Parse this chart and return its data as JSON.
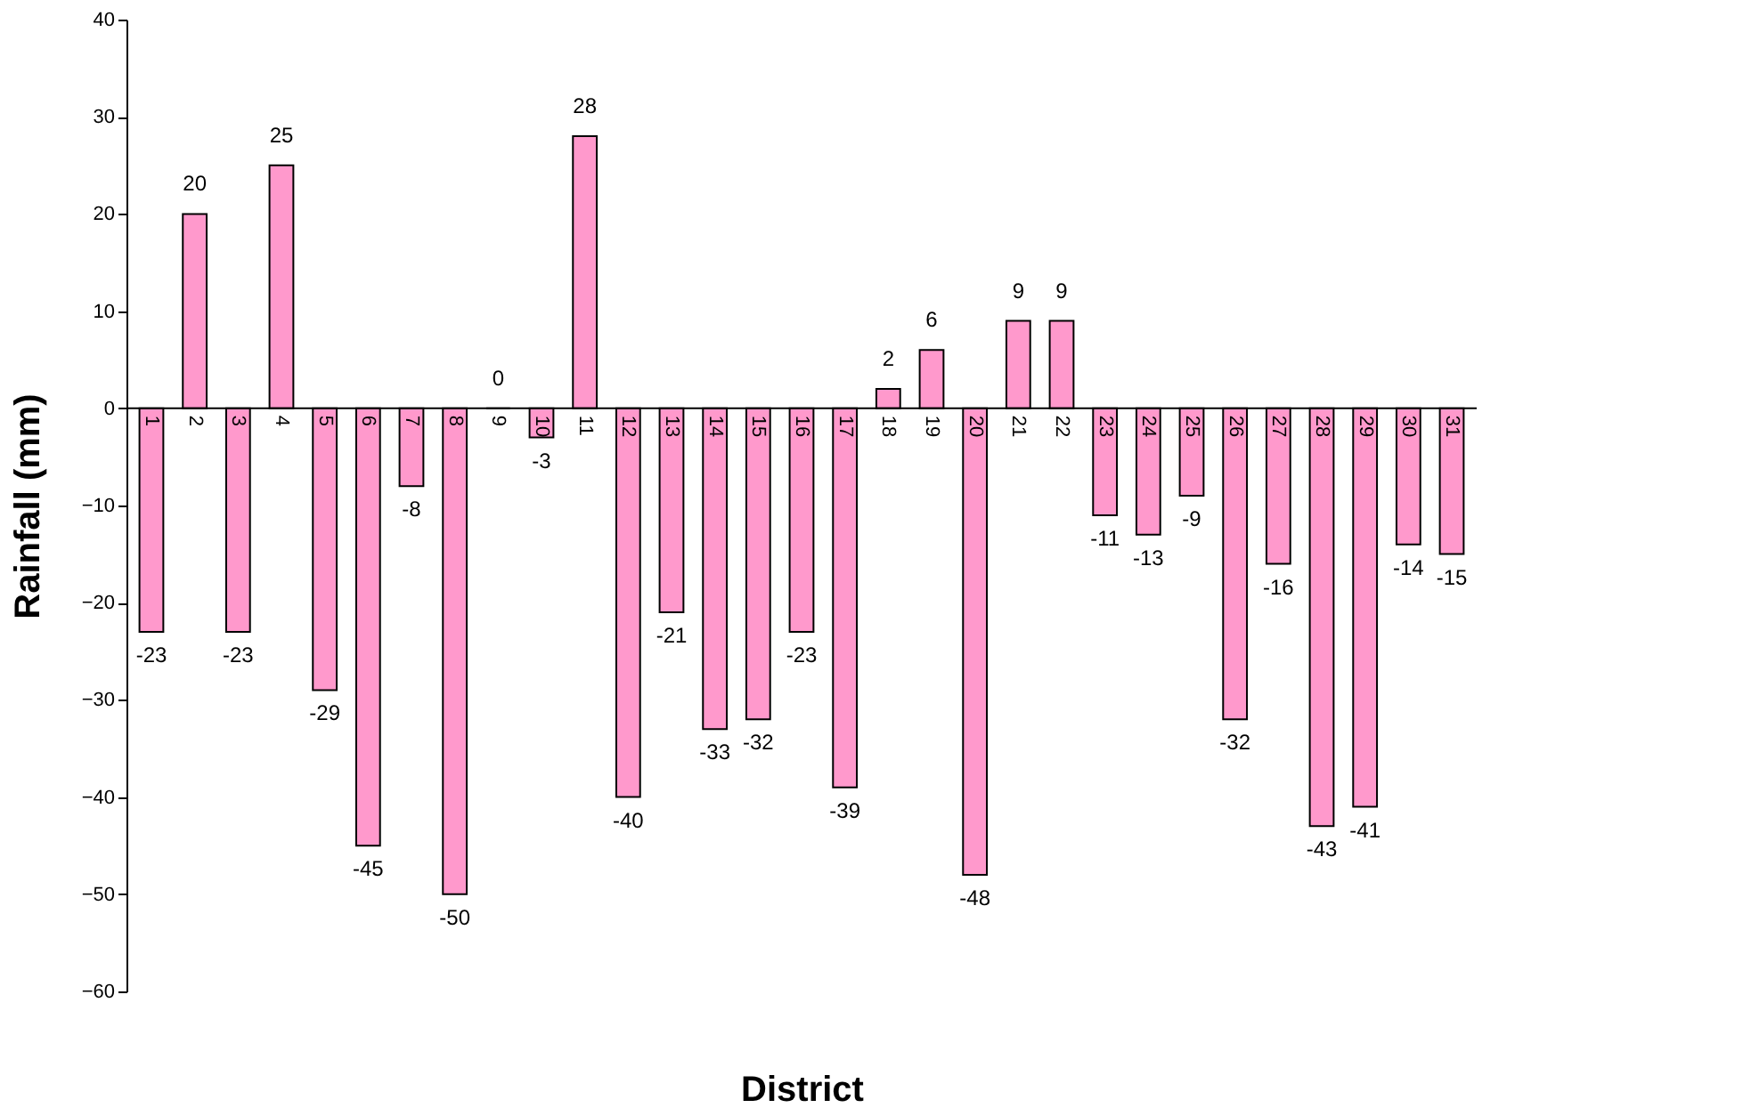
{
  "chart_data": {
    "type": "bar",
    "xlabel": "District",
    "ylabel": "Rainfall (mm)",
    "categories": [
      "1",
      "2",
      "3",
      "4",
      "5",
      "6",
      "7",
      "8",
      "9",
      "10",
      "11",
      "12",
      "13",
      "14",
      "15",
      "16",
      "17",
      "18",
      "19",
      "20",
      "21",
      "22",
      "23",
      "24",
      "25",
      "26",
      "27",
      "28",
      "29",
      "30",
      "31"
    ],
    "values": [
      -23,
      20,
      -23,
      25,
      -29,
      -45,
      -8,
      -50,
      0,
      -3,
      28,
      -40,
      -21,
      -33,
      -32,
      -23,
      -39,
      2,
      6,
      -48,
      9,
      9,
      -11,
      -13,
      -9,
      -32,
      -16,
      -43,
      -41,
      -14,
      -15
    ],
    "color": "#ff99cc",
    "data_labels": true,
    "ylim": [
      -60,
      40
    ],
    "yticks": [
      -60,
      -50,
      -40,
      -30,
      -20,
      -10,
      0,
      10,
      20,
      30,
      40
    ],
    "grid": false
  }
}
